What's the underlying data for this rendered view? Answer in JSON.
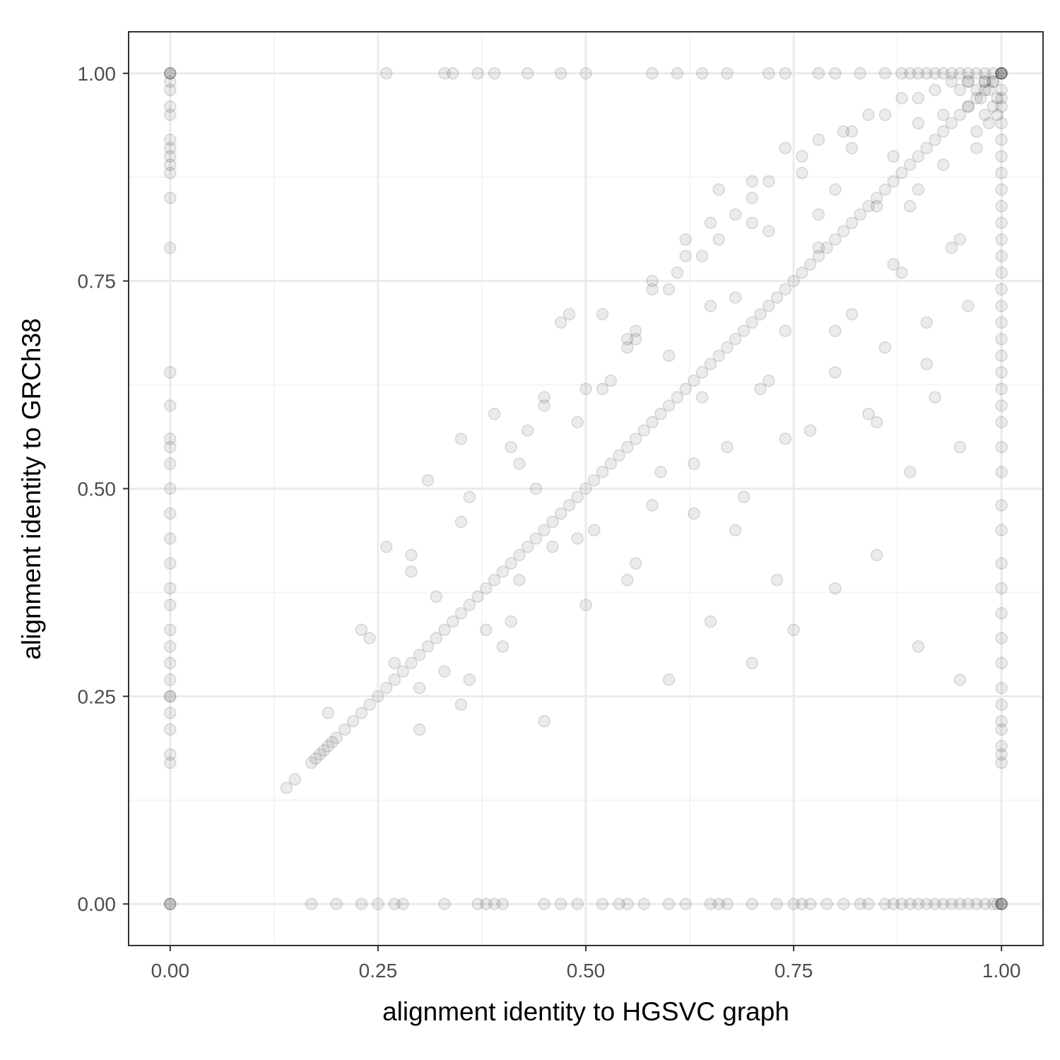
{
  "colors": {
    "background": "#ffffff",
    "panel_border": "#333333",
    "grid_major": "#ebebeb",
    "grid_minor": "#f2f2f2",
    "point": "#000000",
    "tick_text": "#4d4d4d"
  },
  "chart_data": {
    "type": "scatter",
    "title": "",
    "xlabel": "alignment identity to HGSVC graph",
    "ylabel": "alignment identity to GRCh38",
    "xlim": [
      -0.05,
      1.05
    ],
    "ylim": [
      -0.05,
      1.05
    ],
    "x_ticks": [
      0,
      0.25,
      0.5,
      0.75,
      1
    ],
    "x_tick_labels": [
      "0.00",
      "0.25",
      "0.50",
      "0.75",
      "1.00"
    ],
    "y_ticks": [
      0,
      0.25,
      0.5,
      0.75,
      1
    ],
    "y_tick_labels": [
      "0.00",
      "0.25",
      "0.50",
      "0.75",
      "1.00"
    ],
    "minor_ticks": [
      0.125,
      0.375,
      0.625,
      0.875
    ],
    "grid": true,
    "legend": "none",
    "point_alpha": 0.08,
    "series": [
      {
        "x": [
          0.17,
          0.175,
          0.18,
          0.185,
          0.19,
          0.195,
          0.2,
          0.21,
          0.22,
          0.23,
          0.24,
          0.25,
          0.26,
          0.27,
          0.28,
          0.29,
          0.3,
          0.31,
          0.32,
          0.33,
          0.34,
          0.35,
          0.36,
          0.37,
          0.38,
          0.39,
          0.4,
          0.41,
          0.42,
          0.43,
          0.44,
          0.45,
          0.46,
          0.47,
          0.48,
          0.49,
          0.5,
          0.51,
          0.52,
          0.53,
          0.54,
          0.55,
          0.56,
          0.57,
          0.58,
          0.59,
          0.6,
          0.61,
          0.62,
          0.63,
          0.64,
          0.65,
          0.66,
          0.67,
          0.68,
          0.69,
          0.7,
          0.71,
          0.72,
          0.73,
          0.74,
          0.75,
          0.76,
          0.77,
          0.78,
          0.79,
          0.8,
          0.81,
          0.82,
          0.83,
          0.84,
          0.85,
          0.86,
          0.87,
          0.88,
          0.89,
          0.9,
          0.91,
          0.92,
          0.93,
          0.94,
          0.95,
          0.96,
          0.97,
          0.98,
          0.99,
          1,
          0.15,
          0.14,
          0,
          0,
          0,
          0,
          0,
          0,
          0,
          0,
          0,
          0,
          0,
          0,
          0,
          0,
          0,
          0,
          0,
          0,
          0,
          0,
          0,
          0,
          0,
          0,
          0,
          0,
          0,
          0,
          0,
          0,
          0,
          0,
          0,
          0,
          0,
          0,
          0,
          0,
          0.17,
          0.2,
          0.23,
          0.25,
          0.27,
          0.28,
          0.33,
          0.37,
          0.38,
          0.39,
          0.4,
          0.45,
          0.47,
          0.49,
          0.52,
          0.54,
          0.55,
          0.57,
          0.6,
          0.62,
          0.65,
          0.66,
          0.67,
          0.7,
          0.73,
          0.75,
          0.76,
          0.77,
          0.79,
          0.81,
          0.83,
          0.84,
          0.86,
          0.87,
          0.88,
          0.89,
          0.9,
          0.91,
          0.92,
          0.93,
          0.94,
          0.95,
          0.96,
          0.97,
          0.98,
          0.99,
          0.995,
          1,
          1,
          1,
          1,
          0.26,
          0.33,
          0.34,
          0.37,
          0.39,
          0.43,
          0.47,
          0.5,
          0.58,
          0.61,
          0.64,
          0.67,
          0.72,
          0.74,
          0.78,
          0.8,
          0.83,
          0.86,
          0.88,
          0.89,
          0.9,
          0.91,
          0.92,
          0.93,
          0.94,
          0.95,
          0.96,
          0.97,
          0.98,
          0.99,
          1,
          1,
          1,
          1,
          1,
          1,
          1,
          1,
          1,
          1,
          1,
          1,
          1,
          1,
          1,
          1,
          1,
          1,
          1,
          1,
          1,
          1,
          1,
          1,
          1,
          1,
          1,
          1,
          1,
          1,
          1,
          1,
          1,
          1,
          1,
          1,
          1,
          1,
          1,
          1,
          1,
          1,
          0.995,
          0.995,
          0.99,
          0.99,
          0.985,
          0.985,
          0.98,
          0.98,
          0.975,
          0.97,
          0.97,
          0.96,
          0.96,
          0.95,
          0.19,
          0.23,
          0.27,
          0.29,
          0.3,
          0.32,
          0.35,
          0.36,
          0.38,
          0.41,
          0.42,
          0.44,
          0.45,
          0.46,
          0.48,
          0.49,
          0.51,
          0.53,
          0.55,
          0.56,
          0.58,
          0.59,
          0.6,
          0.62,
          0.63,
          0.64,
          0.66,
          0.67,
          0.68,
          0.69,
          0.7,
          0.71,
          0.72,
          0.73,
          0.74,
          0.76,
          0.77,
          0.78,
          0.8,
          0.81,
          0.82,
          0.84,
          0.85,
          0.86,
          0.87,
          0.88,
          0.89,
          0.9,
          0.91,
          0.92,
          0.93,
          0.94,
          0.95,
          0.96,
          0.97,
          0.24,
          0.26,
          0.29,
          0.31,
          0.33,
          0.36,
          0.39,
          0.41,
          0.43,
          0.47,
          0.49,
          0.52,
          0.56,
          0.58,
          0.61,
          0.63,
          0.65,
          0.68,
          0.7,
          0.72,
          0.74,
          0.78,
          0.8,
          0.82,
          0.85,
          0.87,
          0.89,
          0.91,
          0.93,
          0.95,
          0.3,
          0.35,
          0.4,
          0.45,
          0.5,
          0.55,
          0.6,
          0.65,
          0.7,
          0.75,
          0.8,
          0.85,
          0.9,
          0.95,
          0.35,
          0.45,
          0.55,
          0.65,
          0.7,
          0.8,
          0.9,
          0.42,
          0.5,
          0.56,
          0.6,
          0.64,
          0.68,
          0.72,
          0.76,
          0.82,
          0.86,
          0.9,
          0.94,
          0.98,
          0.52,
          0.58,
          0.62,
          0.66,
          0.74,
          0.78,
          0.84,
          0.88,
          0.92,
          0.96
        ],
        "y": [
          0.17,
          0.175,
          0.18,
          0.185,
          0.19,
          0.195,
          0.2,
          0.21,
          0.22,
          0.23,
          0.24,
          0.25,
          0.26,
          0.27,
          0.28,
          0.29,
          0.3,
          0.31,
          0.32,
          0.33,
          0.34,
          0.35,
          0.36,
          0.37,
          0.38,
          0.39,
          0.4,
          0.41,
          0.42,
          0.43,
          0.44,
          0.45,
          0.46,
          0.47,
          0.48,
          0.49,
          0.5,
          0.51,
          0.52,
          0.53,
          0.54,
          0.55,
          0.56,
          0.57,
          0.58,
          0.59,
          0.6,
          0.61,
          0.62,
          0.63,
          0.64,
          0.65,
          0.66,
          0.67,
          0.68,
          0.69,
          0.7,
          0.71,
          0.72,
          0.73,
          0.74,
          0.75,
          0.76,
          0.77,
          0.78,
          0.79,
          0.8,
          0.81,
          0.82,
          0.83,
          0.84,
          0.85,
          0.86,
          0.87,
          0.88,
          0.89,
          0.9,
          0.91,
          0.92,
          0.93,
          0.94,
          0.95,
          0.96,
          0.97,
          0.98,
          0.99,
          1,
          0.15,
          0.14,
          0,
          0,
          0,
          1,
          1,
          1,
          0.99,
          0.98,
          0.96,
          0.95,
          0.91,
          0.9,
          0.88,
          0.85,
          0.79,
          0.64,
          0.56,
          0.55,
          0.53,
          0.5,
          0.47,
          0.41,
          0.38,
          0.36,
          0.33,
          0.29,
          0.27,
          0.25,
          0.25,
          0.21,
          0.18,
          0.17,
          0.92,
          0.89,
          0.6,
          0.44,
          0.31,
          0.23,
          0,
          0,
          0,
          0,
          0,
          0,
          0,
          0,
          0,
          0,
          0,
          0,
          0,
          0,
          0,
          0,
          0,
          0,
          0,
          0,
          0,
          0,
          0,
          0,
          0,
          0,
          0,
          0,
          0,
          0,
          0,
          0,
          0,
          0,
          0,
          0,
          0,
          0,
          0,
          0,
          0,
          0,
          0,
          0,
          0,
          0,
          0,
          0,
          0,
          0,
          0,
          1,
          1,
          1,
          1,
          1,
          1,
          1,
          1,
          1,
          1,
          1,
          1,
          1,
          1,
          1,
          1,
          1,
          1,
          1,
          1,
          1,
          1,
          1,
          1,
          1,
          1,
          1,
          1,
          1,
          1,
          1,
          1,
          1,
          1,
          0.98,
          0.96,
          0.94,
          0.92,
          0.9,
          0.88,
          0.86,
          0.84,
          0.82,
          0.8,
          0.78,
          0.76,
          0.74,
          0.72,
          0.7,
          0.68,
          0.66,
          0.64,
          0.62,
          0.6,
          0.58,
          0.55,
          0.52,
          0.48,
          0.45,
          0.41,
          0.38,
          0.35,
          0.32,
          0.29,
          0.26,
          0.24,
          0.22,
          0.21,
          0.19,
          0.18,
          0.17,
          0.97,
          0.97,
          0.95,
          0.99,
          0.96,
          0.98,
          0.94,
          0.99,
          0.95,
          0.97,
          0.98,
          0.93,
          0.99,
          0.96,
          0.98,
          0.23,
          0.33,
          0.29,
          0.42,
          0.26,
          0.37,
          0.46,
          0.27,
          0.33,
          0.55,
          0.39,
          0.5,
          0.61,
          0.43,
          0.71,
          0.58,
          0.45,
          0.63,
          0.67,
          0.41,
          0.74,
          0.52,
          0.66,
          0.78,
          0.47,
          0.61,
          0.8,
          0.55,
          0.73,
          0.49,
          0.85,
          0.62,
          0.81,
          0.39,
          0.69,
          0.88,
          0.57,
          0.79,
          0.64,
          0.93,
          0.71,
          0.59,
          0.84,
          0.67,
          0.9,
          0.76,
          0.52,
          0.86,
          0.7,
          0.61,
          0.95,
          0.79,
          0.55,
          0.72,
          0.91,
          0.32,
          0.43,
          0.4,
          0.51,
          0.28,
          0.49,
          0.59,
          0.34,
          0.57,
          0.7,
          0.44,
          0.62,
          0.69,
          0.48,
          0.76,
          0.53,
          0.82,
          0.45,
          0.87,
          0.63,
          0.56,
          0.83,
          0.69,
          0.91,
          0.58,
          0.77,
          0.84,
          0.65,
          0.89,
          0.8,
          0.21,
          0.24,
          0.31,
          0.22,
          0.36,
          0.39,
          0.27,
          0.34,
          0.29,
          0.33,
          0.38,
          0.42,
          0.31,
          0.27,
          0.56,
          0.6,
          0.68,
          0.72,
          0.82,
          0.86,
          0.94,
          0.53,
          0.62,
          0.68,
          0.74,
          0.78,
          0.83,
          0.87,
          0.9,
          0.93,
          0.95,
          0.97,
          0.99,
          0.99,
          0.71,
          0.75,
          0.8,
          0.86,
          0.91,
          0.92,
          0.95,
          0.97,
          0.98,
          0.99
        ]
      }
    ]
  }
}
